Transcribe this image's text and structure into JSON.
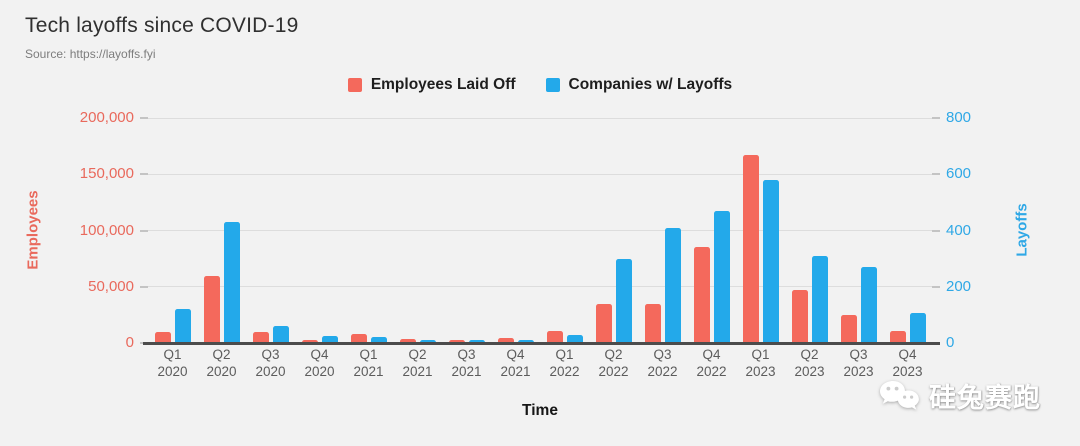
{
  "header": {
    "title": "Tech layoffs since COVID-19",
    "source": "Source: https://layoffs.fyi"
  },
  "chart_data": {
    "type": "bar",
    "title": "Tech layoffs since COVID-19",
    "categories": [
      "Q1 2020",
      "Q2 2020",
      "Q3 2020",
      "Q4 2020",
      "Q1 2021",
      "Q2 2021",
      "Q3 2021",
      "Q4 2021",
      "Q1 2022",
      "Q2 2022",
      "Q3 2022",
      "Q4 2022",
      "Q1 2023",
      "Q2 2023",
      "Q3 2023",
      "Q4 2023"
    ],
    "series": [
      {
        "name": "Employees Laid Off",
        "axis": "left",
        "color": "#f4695c",
        "values": [
          9600,
          60000,
          10000,
          2500,
          8000,
          4000,
          3000,
          4500,
          11000,
          35000,
          35000,
          85000,
          167000,
          47000,
          25000,
          11000
        ]
      },
      {
        "name": "Companies w/ Layoffs",
        "axis": "right",
        "color": "#23a9ea",
        "values": [
          120,
          430,
          60,
          25,
          20,
          10,
          12,
          12,
          30,
          300,
          410,
          470,
          580,
          310,
          270,
          105
        ]
      }
    ],
    "xlabel": "Time",
    "left_axis": {
      "label": "Employees",
      "tick_values": [
        0,
        50000,
        100000,
        150000,
        200000
      ],
      "tick_labels": [
        "0",
        "50,000",
        "100,000",
        "150,000",
        "200,000"
      ],
      "max": 200000,
      "color": "#e9695c"
    },
    "right_axis": {
      "label": "Layoffs",
      "tick_values": [
        0,
        200,
        400,
        600,
        800
      ],
      "tick_labels": [
        "0",
        "200",
        "400",
        "600",
        "800"
      ],
      "max": 800,
      "color": "#2fa8e6"
    },
    "legend_position": "top",
    "grid": true
  },
  "watermark": {
    "text": "硅兔赛跑",
    "icon": "wechat-icon"
  }
}
